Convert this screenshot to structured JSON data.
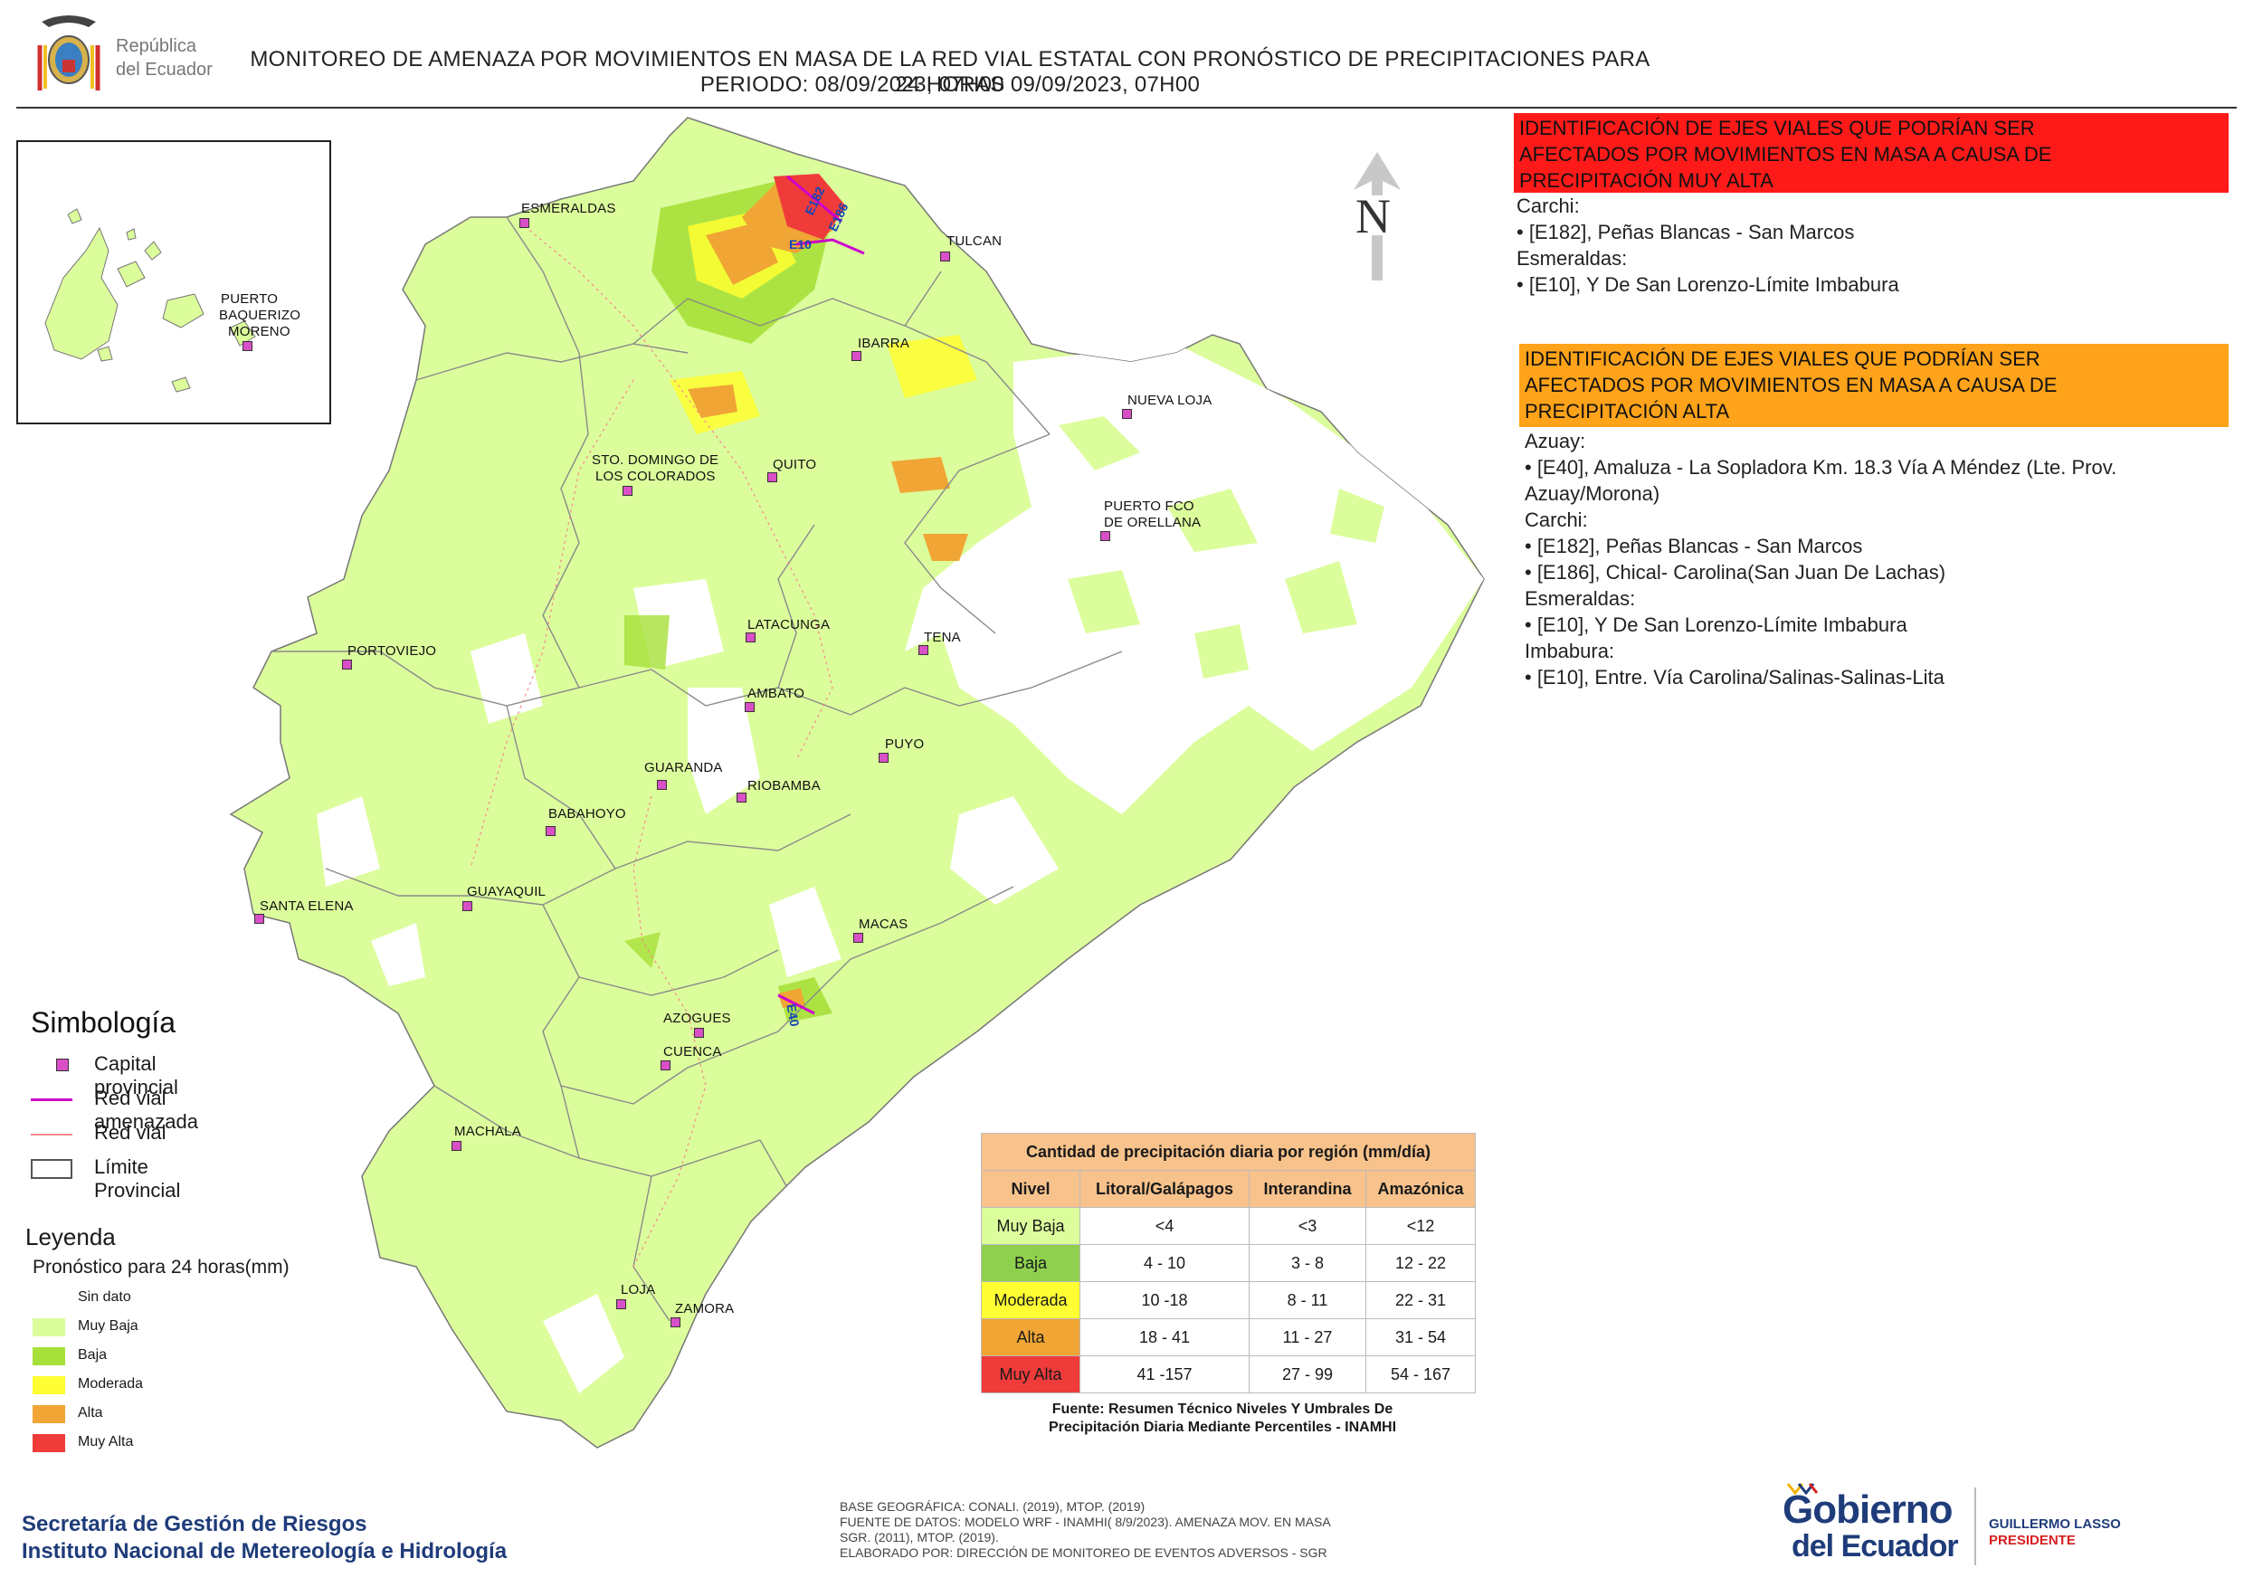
{
  "header": {
    "title_line1": "MONITOREO DE AMENAZA POR MOVIMIENTOS EN MASA DE LA RED VIAL  ESTATAL  CON PRONÓSTICO  DE  PRECIPITACIONES PARA 24 HORAS",
    "title_line2": "PERIODO: 08/09/2023, 07H00 09/09/2023, 07H00",
    "logo_line1": "República",
    "logo_line2": "del Ecuador"
  },
  "map": {
    "north_label": "N",
    "inset_city": [
      "PUERTO",
      "BAQUERIZO",
      "MORENO"
    ],
    "cities": [
      {
        "name": "ESMERALDAS"
      },
      {
        "name": "TULCAN"
      },
      {
        "name": "IBARRA"
      },
      {
        "name": "NUEVA LOJA"
      },
      {
        "name": "STO. DOMINGO DE"
      },
      {
        "name": "LOS COLORADOS"
      },
      {
        "name": "QUITO"
      },
      {
        "name": "PUERTO FCO"
      },
      {
        "name": "DE ORELLANA"
      },
      {
        "name": "LATACUNGA"
      },
      {
        "name": "TENA"
      },
      {
        "name": "PORTOVIEJO"
      },
      {
        "name": "AMBATO"
      },
      {
        "name": "PUYO"
      },
      {
        "name": "GUARANDA"
      },
      {
        "name": "RIOBAMBA"
      },
      {
        "name": "BABAHOYO"
      },
      {
        "name": "GUAYAQUIL"
      },
      {
        "name": "SANTA ELENA"
      },
      {
        "name": "MACAS"
      },
      {
        "name": "AZOGUES"
      },
      {
        "name": "CUENCA"
      },
      {
        "name": "MACHALA"
      },
      {
        "name": "LOJA"
      },
      {
        "name": "ZAMORA"
      }
    ],
    "road_labels": [
      "E182",
      "E186",
      "E10",
      "E40"
    ],
    "colors": {
      "muy_baja": "#dcfd9c",
      "baja": "#a6e03a",
      "moderada": "#ffff33",
      "alta": "#f0a535",
      "muy_alta": "#f03b3b",
      "capital": "#d94fc7",
      "red_amenazada": "#cc00cc",
      "red_vial": "#f58a8a"
    }
  },
  "panel_red": {
    "header": "IDENTIFICACIÓN DE EJES VIALES QUE PODRÍAN SER AFECTADOS POR MOVIMIENTOS EN MASA A CAUSA DE PRECIPITACIÓN MUY ALTA",
    "header_lines": [
      "IDENTIFICACIÓN DE EJES VIALES QUE PODRÍAN SER",
      "AFECTADOS POR MOVIMIENTOS EN MASA A CAUSA DE",
      "PRECIPITACIÓN MUY ALTA"
    ],
    "lines": [
      "Carchi:",
      "• [E182], Peñas Blancas - San Marcos",
      "Esmeraldas:",
      "• [E10], Y De San Lorenzo-Límite Imbabura"
    ]
  },
  "panel_orange": {
    "header_lines": [
      "IDENTIFICACIÓN DE EJES VIALES QUE PODRÍAN SER",
      "AFECTADOS POR MOVIMIENTOS EN MASA A CAUSA DE",
      "PRECIPITACIÓN  ALTA"
    ],
    "lines": [
      "Azuay:",
      "• [E40], Amaluza - La Sopladora Km. 18.3 Vía A Méndez (Lte. Prov.",
      "Azuay/Morona)",
      "Carchi:",
      "• [E182], Peñas Blancas - San Marcos",
      "• [E186], Chical- Carolina(San Juan De Lachas)",
      "Esmeraldas:",
      "• [E10], Y De San Lorenzo-Límite Imbabura",
      "Imbabura:",
      "• [E10], Entre. Vía Carolina/Salinas-Salinas-Lita"
    ]
  },
  "simbologia": {
    "title": "Simbología",
    "items": [
      "Capital provincial",
      "Red vial amenazada",
      "Red vial",
      "Límite Provincial"
    ]
  },
  "leyenda": {
    "title": "Leyenda",
    "subtitle": "Pronóstico para 24 horas(mm)",
    "items": [
      {
        "label": "Sin dato",
        "color": "#ffffff"
      },
      {
        "label": "Muy Baja",
        "color": "#dcfd9c"
      },
      {
        "label": "Baja",
        "color": "#a6e03a"
      },
      {
        "label": "Moderada",
        "color": "#ffff33"
      },
      {
        "label": "Alta",
        "color": "#f0a535"
      },
      {
        "label": "Muy Alta",
        "color": "#f03b3b"
      }
    ]
  },
  "table": {
    "title": "Cantidad de precipitación diaria por región (mm/día)",
    "headers": [
      "Nivel",
      "Litoral/Galápagos",
      "Interandina",
      "Amazónica"
    ],
    "rows": [
      {
        "level": "Muy Baja",
        "color": "#dcfd9c",
        "values": [
          "<4",
          "<3",
          "<12"
        ]
      },
      {
        "level": "Baja",
        "color": "#8fd14f",
        "values": [
          "4 - 10",
          "3 - 8",
          "12 - 22"
        ]
      },
      {
        "level": "Moderada",
        "color": "#ffff33",
        "values": [
          "10 -18",
          "8 - 11",
          "22 - 31"
        ]
      },
      {
        "level": "Alta",
        "color": "#f0a535",
        "values": [
          "18 - 41",
          "11 - 27",
          "31 - 54"
        ]
      },
      {
        "level": "Muy Alta",
        "color": "#f03b3b",
        "values": [
          "41 -157",
          "27 - 99",
          "54 - 167"
        ]
      }
    ],
    "source_lines": [
      "Fuente: Resumen Técnico Niveles Y Umbrales De",
      "Precipitación Diaria Mediante Percentiles - INAMHI"
    ]
  },
  "sources": [
    "BASE GEOGRÁFICA: CONALI. (2019), MTOP. (2019)",
    "FUENTE DE DATOS: MODELO WRF - INAMHI( 8/9/2023).  AMENAZA MOV. EN MASA",
    "SGR. (2011), MTOP. (2019).",
    "ELABORADO POR: DIRECCIÓN DE MONITOREO DE EVENTOS ADVERSOS - SGR"
  ],
  "agencies": [
    "Secretaría de Gestión de Riesgos",
    "Instituto Nacional de Metereología e Hidrología"
  ],
  "gobierno": {
    "line1": "Gobierno",
    "line2": "del Ecuador",
    "person": "GUILLERMO LASSO",
    "role": "PRESIDENTE"
  }
}
